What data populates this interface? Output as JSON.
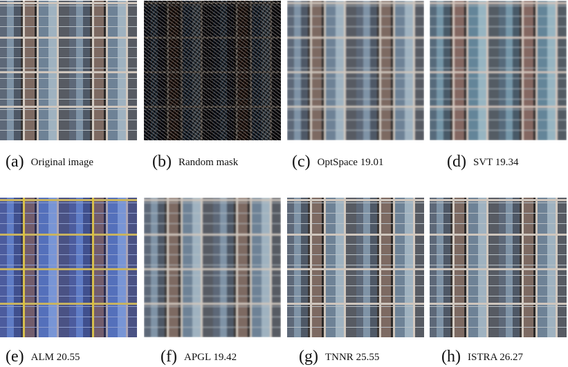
{
  "panels": [
    {
      "label": "(a)",
      "caption": "Original image"
    },
    {
      "label": "(b)",
      "caption": "Random mask"
    },
    {
      "label": "(c)",
      "caption": "OptSpace 19.01"
    },
    {
      "label": "(d)",
      "caption": "SVT 19.34"
    },
    {
      "label": "(e)",
      "caption": "ALM 20.55"
    },
    {
      "label": "(f)",
      "caption": "APGL 19.42"
    },
    {
      "label": "(g)",
      "caption": "TNNR 25.55"
    },
    {
      "label": "(h)",
      "caption": "ISTRA 26.27"
    }
  ]
}
